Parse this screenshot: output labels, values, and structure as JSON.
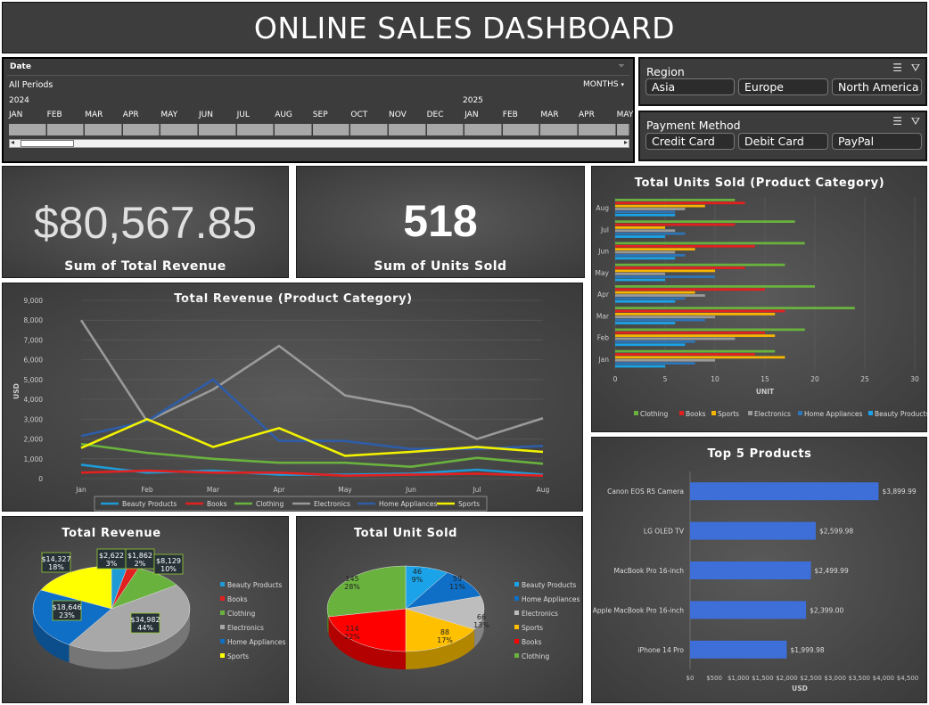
{
  "title": "ONLINE SALES DASHBOARD",
  "timeline": {
    "header": "Date",
    "periods": "All Periods",
    "level": "MONTHS",
    "years": [
      "2024",
      "2025"
    ],
    "months": [
      "JAN",
      "FEB",
      "MAR",
      "APR",
      "MAY",
      "JUN",
      "JUL",
      "AUG",
      "SEP",
      "OCT",
      "NOV",
      "DEC",
      "JAN",
      "FEB",
      "MAR",
      "APR",
      "MAY"
    ]
  },
  "region": {
    "header": "Region",
    "items": [
      "Asia",
      "Europe",
      "North America"
    ]
  },
  "payment": {
    "header": "Payment Method",
    "items": [
      "Credit Card",
      "Debit Card",
      "PayPal"
    ]
  },
  "kpi": {
    "revenue_value": "$80,567.85",
    "revenue_label": "Sum of Total Revenue",
    "units_value": "518",
    "units_label": "Sum of Units Sold"
  },
  "colors": {
    "Beauty Products": "#1e9bd6",
    "Books": "#e32020",
    "Clothing": "#6ab23e",
    "Electronics": "#9a9a9a",
    "Home Appliances": "#2e5da8",
    "Sports": "#f2f200",
    "units_Clothing": "#6ab23e",
    "units_Books": "#e32020",
    "units_Sports": "#f7b500",
    "units_Electronics": "#9a9a9a",
    "units_Home Appliances": "#2e75b6",
    "units_Beauty Products": "#1aa3e8",
    "top5_bar": "#3e6fd8"
  },
  "chart_data": [
    {
      "type": "line",
      "title": "Total Revenue (Product Category)",
      "ylabel": "USD",
      "xlabel": "",
      "x": [
        "Jan",
        "Feb",
        "Mar",
        "Apr",
        "May",
        "Jun",
        "Jul",
        "Aug"
      ],
      "ylim": [
        0,
        9000
      ],
      "yticks": [
        "0",
        "1,000",
        "2,000",
        "3,000",
        "4,000",
        "5,000",
        "6,000",
        "7,000",
        "8,000",
        "9,000"
      ],
      "legend": "bottom",
      "series": [
        {
          "name": "Beauty Products",
          "values": [
            700,
            300,
            400,
            200,
            200,
            250,
            450,
            200
          ]
        },
        {
          "name": "Books",
          "values": [
            300,
            400,
            300,
            300,
            150,
            200,
            250,
            150
          ]
        },
        {
          "name": "Clothing",
          "values": [
            1750,
            1300,
            1000,
            800,
            800,
            600,
            1050,
            750
          ]
        },
        {
          "name": "Electronics",
          "values": [
            8000,
            2900,
            4500,
            6700,
            4200,
            3600,
            2000,
            3050
          ]
        },
        {
          "name": "Home Appliances",
          "values": [
            2150,
            2900,
            5000,
            1900,
            1900,
            1500,
            1500,
            1650
          ]
        },
        {
          "name": "Sports",
          "values": [
            1550,
            3000,
            1600,
            2550,
            1150,
            1350,
            1600,
            1350
          ]
        }
      ]
    },
    {
      "type": "bar",
      "orientation": "horizontal",
      "title": "Total Units Sold (Product Category)",
      "xlabel": "UNIT",
      "ylabel": "",
      "categories": [
        "Jan",
        "Feb",
        "Mar",
        "Apr",
        "May",
        "Jun",
        "Jul",
        "Aug"
      ],
      "xlim": [
        0,
        30
      ],
      "xticks": [
        "0",
        "5",
        "10",
        "15",
        "20",
        "25",
        "30"
      ],
      "legend": "bottom",
      "series": [
        {
          "name": "Clothing",
          "values": [
            16,
            19,
            24,
            20,
            17,
            19,
            18,
            12
          ]
        },
        {
          "name": "Books",
          "values": [
            14,
            15,
            17,
            15,
            13,
            14,
            12,
            13
          ]
        },
        {
          "name": "Sports",
          "values": [
            17,
            16,
            16,
            8,
            10,
            8,
            5,
            9
          ]
        },
        {
          "name": "Electronics",
          "values": [
            10,
            12,
            10,
            9,
            5,
            6,
            6,
            7
          ]
        },
        {
          "name": "Home Appliances",
          "values": [
            8,
            8,
            9,
            7,
            10,
            7,
            7,
            6
          ]
        },
        {
          "name": "Beauty Products",
          "values": [
            5,
            7,
            6,
            6,
            5,
            6,
            5,
            6
          ]
        }
      ]
    },
    {
      "type": "pie",
      "title": "Total Revenue",
      "legend": "right",
      "slices": [
        {
          "name": "Beauty Products",
          "value": 2622,
          "label": "$2,622",
          "pct": "3%"
        },
        {
          "name": "Books",
          "value": 1862,
          "label": "$1,862",
          "pct": "2%"
        },
        {
          "name": "Clothing",
          "value": 8129,
          "label": "$8,129",
          "pct": "10%"
        },
        {
          "name": "Electronics",
          "value": 34982,
          "label": "$34,982",
          "pct": "44%"
        },
        {
          "name": "Home Appliances",
          "value": 18646,
          "label": "$18,646",
          "pct": "23%"
        },
        {
          "name": "Sports",
          "value": 14327,
          "label": "$14,327",
          "pct": "18%"
        }
      ]
    },
    {
      "type": "pie",
      "title": "Total Unit Sold",
      "legend": "right",
      "slices": [
        {
          "name": "Beauty Products",
          "value": 46,
          "label": "46",
          "pct": "9%"
        },
        {
          "name": "Home Appliances",
          "value": 59,
          "label": "59",
          "pct": "11%"
        },
        {
          "name": "Electronics",
          "value": 66,
          "label": "66",
          "pct": "13%"
        },
        {
          "name": "Sports",
          "value": 88,
          "label": "88",
          "pct": "17%"
        },
        {
          "name": "Books",
          "value": 114,
          "label": "114",
          "pct": "22%"
        },
        {
          "name": "Clothing",
          "value": 145,
          "label": "145",
          "pct": "28%"
        }
      ]
    },
    {
      "type": "bar",
      "orientation": "horizontal",
      "title": "Top 5 Products",
      "xlabel": "USD",
      "ylabel": "",
      "categories": [
        "Canon EOS R5 Camera",
        "LG OLED TV",
        "MacBook Pro 16-inch",
        "Apple MacBook Pro 16-inch",
        "iPhone 14 Pro"
      ],
      "values": [
        3899.99,
        2599.98,
        2499.99,
        2399.0,
        1999.98
      ],
      "value_labels": [
        "$3,899.99",
        "$2,599.98",
        "$2,499.99",
        "$2,399.00",
        "$1,999.98"
      ],
      "xlim": [
        0,
        4500
      ],
      "xticks": [
        "$0",
        "$500",
        "$1,000",
        "$1,500",
        "$2,000",
        "$2,500",
        "$3,000",
        "$3,500",
        "$4,000",
        "$4,500"
      ]
    }
  ]
}
